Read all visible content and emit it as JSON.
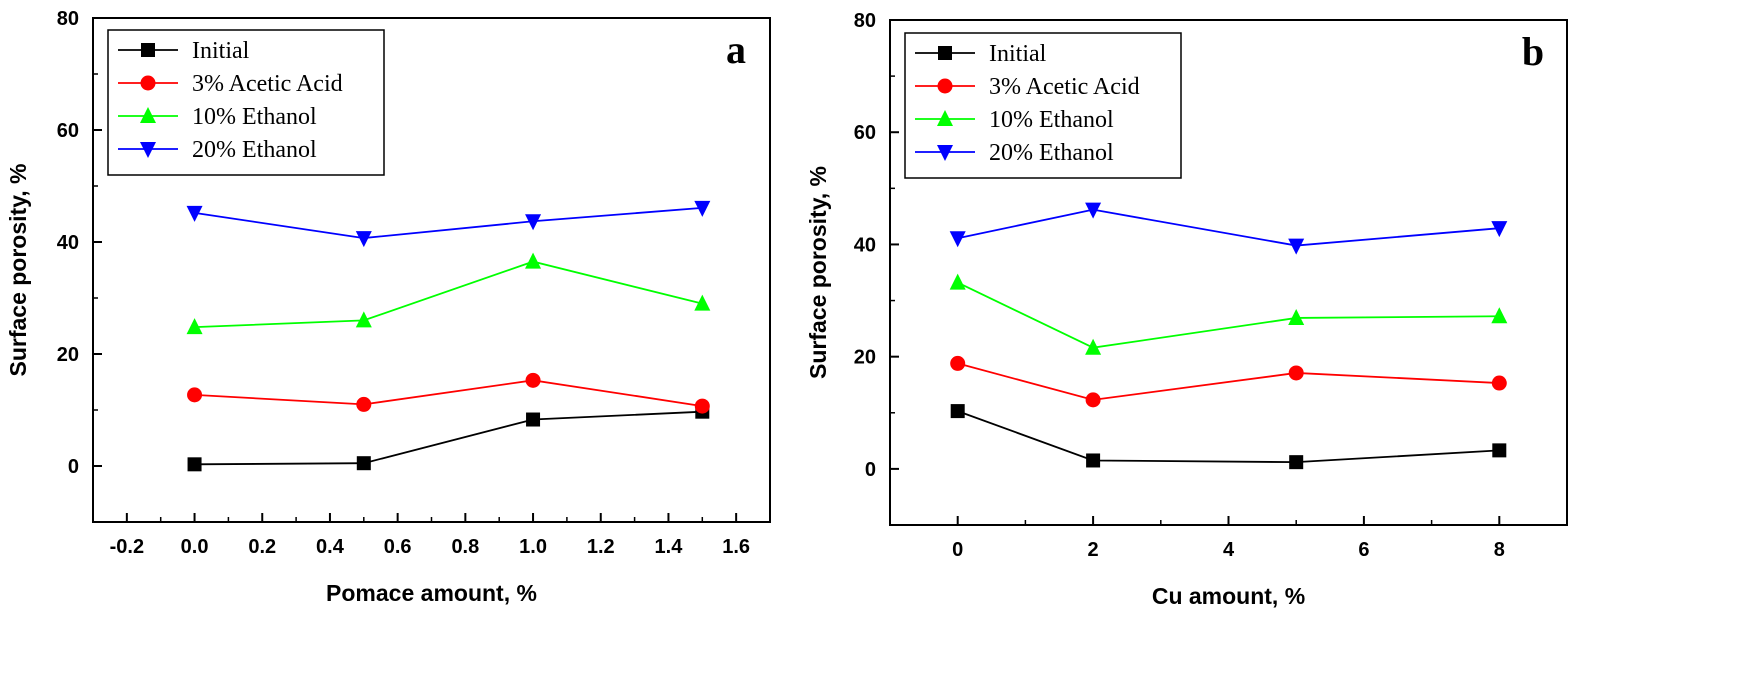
{
  "chart_data": [
    {
      "type": "line",
      "panel_label": "a",
      "xlabel": "Pomace amount, %",
      "ylabel": "Surface porosity, %",
      "xlim": [
        -0.3,
        1.7
      ],
      "ylim": [
        -10,
        80
      ],
      "xticks": [
        -0.2,
        0.0,
        0.2,
        0.4,
        0.6,
        0.8,
        1.0,
        1.2,
        1.4,
        1.6
      ],
      "xtick_labels": [
        "-0.2",
        "0.0",
        "0.2",
        "0.4",
        "0.6",
        "0.8",
        "1.0",
        "1.2",
        "1.4",
        "1.6"
      ],
      "yticks": [
        0,
        20,
        40,
        60,
        80
      ],
      "ytick_labels": [
        "0",
        "20",
        "40",
        "60",
        "80"
      ],
      "legend_position": "top-left",
      "x": [
        0.0,
        0.5,
        1.0,
        1.5
      ],
      "series": [
        {
          "name": "Initial",
          "color": "#000000",
          "marker": "square",
          "values": [
            0.3,
            0.5,
            8.3,
            9.7
          ]
        },
        {
          "name": "3% Acetic Acid",
          "color": "#ff0000",
          "marker": "circle",
          "values": [
            12.7,
            11.0,
            15.3,
            10.7
          ]
        },
        {
          "name": "10% Ethanol",
          "color": "#00ff00",
          "marker": "triangle-up",
          "values": [
            24.8,
            26.0,
            36.5,
            29.0
          ]
        },
        {
          "name": "20% Ethanol",
          "color": "#0000ff",
          "marker": "triangle-down",
          "values": [
            45.2,
            40.7,
            43.7,
            46.1
          ]
        }
      ]
    },
    {
      "type": "line",
      "panel_label": "b",
      "xlabel": "Cu amount, %",
      "ylabel": "Surface porosity, %",
      "xlim": [
        -1,
        9
      ],
      "ylim": [
        -10,
        80
      ],
      "xticks": [
        0,
        2,
        4,
        6,
        8
      ],
      "xtick_labels": [
        "0",
        "2",
        "4",
        "6",
        "8"
      ],
      "yticks": [
        0,
        20,
        40,
        60,
        80
      ],
      "ytick_labels": [
        "0",
        "20",
        "40",
        "60",
        "80"
      ],
      "legend_position": "top-left",
      "x": [
        0,
        2,
        5,
        8
      ],
      "series": [
        {
          "name": "Initial",
          "color": "#000000",
          "marker": "square",
          "values": [
            10.3,
            1.5,
            1.2,
            3.3
          ]
        },
        {
          "name": "3% Acetic Acid",
          "color": "#ff0000",
          "marker": "circle",
          "values": [
            18.8,
            12.3,
            17.1,
            15.3
          ]
        },
        {
          "name": "10% Ethanol",
          "color": "#00ff00",
          "marker": "triangle-up",
          "values": [
            33.2,
            21.6,
            26.9,
            27.2
          ]
        },
        {
          "name": "20% Ethanol",
          "color": "#0000ff",
          "marker": "triangle-down",
          "values": [
            41.1,
            46.2,
            39.8,
            42.9
          ]
        }
      ]
    }
  ]
}
